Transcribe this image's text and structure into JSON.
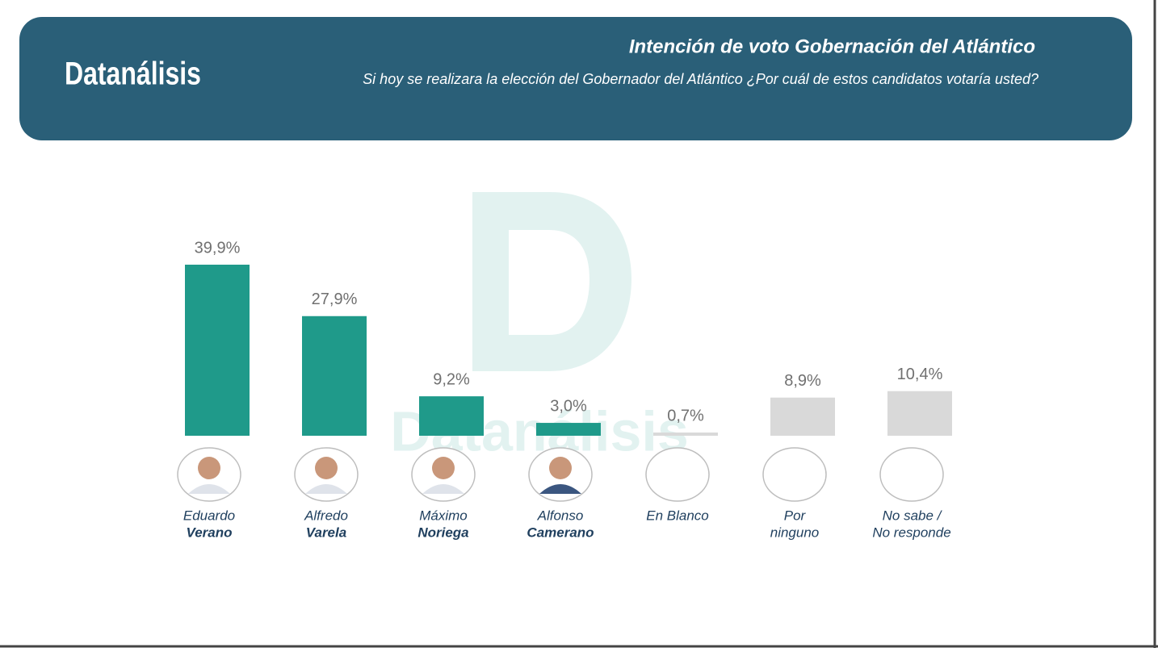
{
  "header": {
    "brand": "Datanálisis"
  },
  "chart_data": {
    "type": "bar",
    "title": "Intención de voto Gobernación del Atlántico",
    "subtitle": "Si hoy se realizara la elección del Gobernador del Atlántico ¿Por cuál de estos candidatos votaría usted?",
    "categories": [
      [
        "Eduardo",
        "Verano"
      ],
      [
        "Alfredo",
        "Varela"
      ],
      [
        "Máximo",
        "Noriega"
      ],
      [
        "Alfonso",
        "Camerano"
      ],
      [
        "En Blanco"
      ],
      [
        "Por",
        "ninguno"
      ],
      [
        "No sabe /",
        "No responde"
      ]
    ],
    "values": [
      39.9,
      27.9,
      9.2,
      3.0,
      0.7,
      8.9,
      10.4
    ],
    "value_labels": [
      "39,9%",
      "27,9%",
      "9,2%",
      "3,0%",
      "0,7%",
      "8,9%",
      "10,4%"
    ],
    "colors": [
      "#1f9a8a",
      "#1f9a8a",
      "#1f9a8a",
      "#1f9a8a",
      "#d9d9d9",
      "#d9d9d9",
      "#d9d9d9"
    ]
  }
}
